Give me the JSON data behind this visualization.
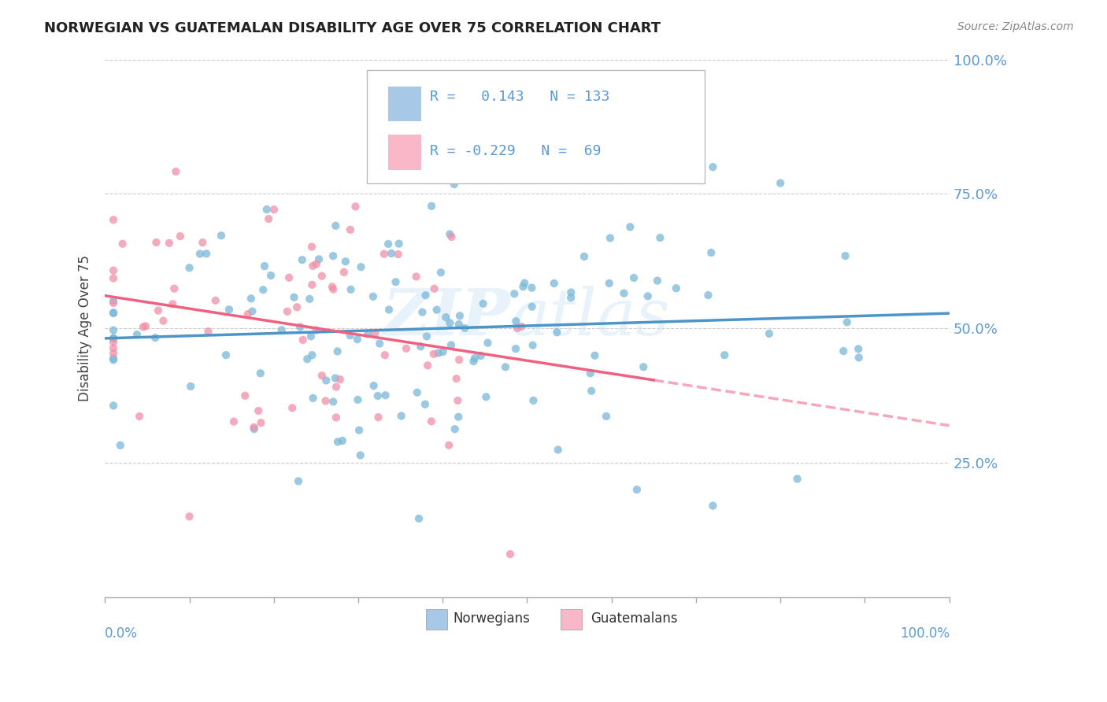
{
  "title": "NORWEGIAN VS GUATEMALAN DISABILITY AGE OVER 75 CORRELATION CHART",
  "source": "Source: ZipAtlas.com",
  "ylabel": "Disability Age Over 75",
  "xlim": [
    0,
    100
  ],
  "ylim": [
    0,
    100
  ],
  "ytick_labels": [
    "25.0%",
    "50.0%",
    "75.0%",
    "100.0%"
  ],
  "ytick_values": [
    25,
    50,
    75,
    100
  ],
  "norwegian_color": "#7ab8d9",
  "guatemalan_color": "#f090a8",
  "norwegian_legend_color": "#a8c8e8",
  "guatemalan_legend_color": "#f8b8c8",
  "norwegian_line_color": "#4d94c8",
  "guatemalan_line_color": "#f06080",
  "background_color": "#ffffff",
  "watermark": "ZIPAtlas",
  "R_norwegian": 0.143,
  "R_guatemalan": -0.229,
  "N_norwegian": 133,
  "N_guatemalan": 69,
  "grid_color": "#cccccc",
  "axis_color": "#aaaaaa",
  "label_color": "#5b9bd5",
  "title_color": "#222222",
  "ylabel_color": "#444444"
}
